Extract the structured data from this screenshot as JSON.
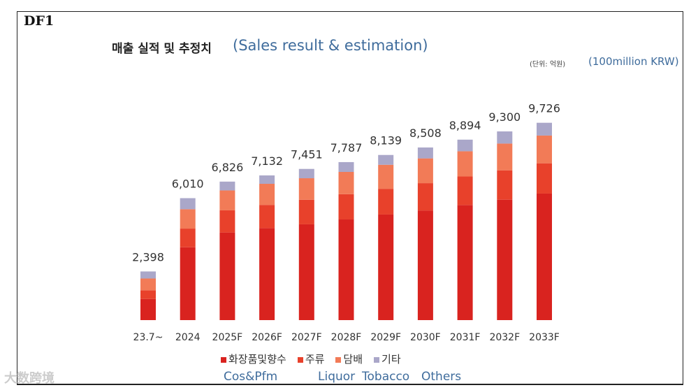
{
  "label": "DF1",
  "watermark": "大数跨境",
  "chart_data": {
    "type": "bar",
    "stacked": true,
    "title": "매출 실적 및 추정치",
    "title_en": "(Sales result & estimation)",
    "unit": "(단위: 억원)",
    "unit_en": "(100million KRW)",
    "categories": [
      "23.7~",
      "2024",
      "2025F",
      "2026F",
      "2027F",
      "2028F",
      "2029F",
      "2030F",
      "2031F",
      "2032F",
      "2033F"
    ],
    "totals": [
      2398,
      6010,
      6826,
      7132,
      7451,
      7787,
      8139,
      8508,
      8894,
      9300,
      9726
    ],
    "total_labels": [
      "2,398",
      "6,010",
      "6,826",
      "7,132",
      "7,451",
      "7,787",
      "8,139",
      "8,508",
      "8,894",
      "9,300",
      "9,726"
    ],
    "series": [
      {
        "name": "화장품및향수",
        "name_en": "Cos&Pfm",
        "color": "#d9231f",
        "values": [
          1043,
          3590,
          4318,
          4535,
          4721,
          4960,
          5203,
          5403,
          5673,
          5935,
          6236
        ]
      },
      {
        "name": "주류",
        "name_en": "Liquor",
        "color": "#e8412b",
        "values": [
          427,
          920,
          1092,
          1143,
          1210,
          1246,
          1268,
          1346,
          1405,
          1447,
          1492
        ]
      },
      {
        "name": "담배",
        "name_en": "Tobacco",
        "color": "#f27b57",
        "values": [
          580,
          955,
          981,
          1039,
          1061,
          1097,
          1185,
          1221,
          1243,
          1319,
          1368
        ]
      },
      {
        "name": "기타",
        "name_en": "Others",
        "color": "#aaa7c9",
        "values": [
          348,
          545,
          435,
          415,
          459,
          484,
          483,
          538,
          573,
          599,
          630
        ]
      }
    ],
    "ylim": [
      0,
      10000
    ],
    "grid": false,
    "legend_position": "bottom"
  }
}
